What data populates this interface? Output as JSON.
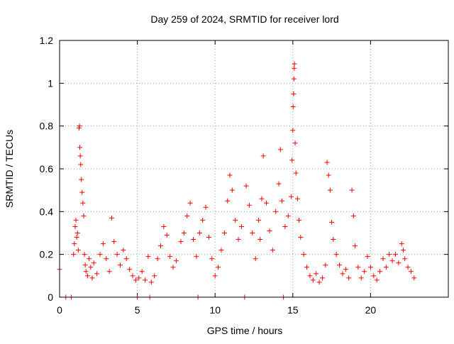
{
  "chart_data": {
    "type": "scatter",
    "title": "Day 259 of 2024, SRMTID for receiver lord",
    "xlabel": "GPS time / hours",
    "ylabel": "SRMTID / TECUs",
    "xlim": [
      0,
      25
    ],
    "ylim": [
      0,
      1.2
    ],
    "xticks": [
      0,
      5,
      10,
      15,
      20
    ],
    "xtick_labels": [
      "0",
      "5",
      "10",
      "15",
      "20"
    ],
    "yticks": [
      0,
      0.2,
      0.4,
      0.6,
      0.8,
      1,
      1.2
    ],
    "ytick_labels": [
      "0",
      "0.2",
      "0.4",
      "0.6",
      "0.8",
      "1",
      "1.2"
    ],
    "grid": true,
    "marker": "+",
    "color": "#ff0000",
    "series": [
      {
        "name": "SRMTID",
        "points": [
          [
            0.0,
            0.13
          ],
          [
            0.4,
            0.0
          ],
          [
            0.75,
            0.0
          ],
          [
            0.9,
            0.2
          ],
          [
            0.95,
            0.25
          ],
          [
            1.0,
            0.33
          ],
          [
            1.05,
            0.36
          ],
          [
            1.1,
            0.28
          ],
          [
            1.15,
            0.3
          ],
          [
            1.2,
            0.22
          ],
          [
            1.25,
            0.79
          ],
          [
            1.28,
            0.8
          ],
          [
            1.3,
            0.7
          ],
          [
            1.33,
            0.66
          ],
          [
            1.36,
            0.62
          ],
          [
            1.4,
            0.55
          ],
          [
            1.45,
            0.49
          ],
          [
            1.5,
            0.44
          ],
          [
            1.55,
            0.38
          ],
          [
            1.6,
            0.2
          ],
          [
            1.65,
            0.15
          ],
          [
            1.7,
            0.12
          ],
          [
            1.8,
            0.1
          ],
          [
            1.9,
            0.18
          ],
          [
            2.0,
            0.14
          ],
          [
            2.1,
            0.09
          ],
          [
            2.2,
            0.16
          ],
          [
            2.4,
            0.11
          ],
          [
            2.6,
            0.2
          ],
          [
            2.8,
            0.25
          ],
          [
            3.0,
            0.18
          ],
          [
            3.2,
            0.12
          ],
          [
            3.35,
            0.37
          ],
          [
            3.5,
            0.26
          ],
          [
            3.7,
            0.2
          ],
          [
            3.9,
            0.15
          ],
          [
            4.1,
            0.22
          ],
          [
            4.3,
            0.18
          ],
          [
            4.5,
            0.13
          ],
          [
            4.7,
            0.1
          ],
          [
            4.9,
            0.08
          ],
          [
            5.0,
            0.0
          ],
          [
            5.1,
            0.09
          ],
          [
            5.3,
            0.12
          ],
          [
            5.5,
            0.08
          ],
          [
            5.7,
            0.19
          ],
          [
            5.8,
            0.0
          ],
          [
            5.9,
            0.07
          ],
          [
            6.1,
            0.1
          ],
          [
            6.3,
            0.18
          ],
          [
            6.5,
            0.24
          ],
          [
            6.7,
            0.33
          ],
          [
            6.9,
            0.29
          ],
          [
            7.1,
            0.19
          ],
          [
            7.3,
            0.14
          ],
          [
            7.5,
            0.17
          ],
          [
            7.8,
            0.26
          ],
          [
            8.0,
            0.3
          ],
          [
            8.2,
            0.38
          ],
          [
            8.4,
            0.44
          ],
          [
            8.6,
            0.27
          ],
          [
            8.8,
            0.19
          ],
          [
            8.9,
            0.0
          ],
          [
            9.0,
            0.3
          ],
          [
            9.2,
            0.36
          ],
          [
            9.4,
            0.42
          ],
          [
            9.6,
            0.28
          ],
          [
            9.8,
            0.18
          ],
          [
            10.0,
            0.1
          ],
          [
            10.2,
            0.14
          ],
          [
            10.4,
            0.22
          ],
          [
            10.6,
            0.3
          ],
          [
            10.8,
            0.45
          ],
          [
            10.95,
            0.57
          ],
          [
            11.1,
            0.5
          ],
          [
            11.3,
            0.36
          ],
          [
            11.5,
            0.27
          ],
          [
            11.7,
            0.33
          ],
          [
            11.9,
            0.0
          ],
          [
            12.0,
            0.52
          ],
          [
            12.2,
            0.43
          ],
          [
            12.4,
            0.3
          ],
          [
            12.6,
            0.18
          ],
          [
            12.8,
            0.36
          ],
          [
            12.9,
            0.27
          ],
          [
            13.0,
            0.46
          ],
          [
            13.1,
            0.66
          ],
          [
            13.3,
            0.44
          ],
          [
            13.5,
            0.31
          ],
          [
            13.7,
            0.22
          ],
          [
            13.9,
            0.4
          ],
          [
            14.1,
            0.53
          ],
          [
            14.2,
            0.69
          ],
          [
            14.3,
            0.45
          ],
          [
            14.4,
            0.0
          ],
          [
            14.5,
            0.33
          ],
          [
            14.7,
            0.38
          ],
          [
            14.9,
            0.47
          ],
          [
            14.95,
            0.64
          ],
          [
            15.0,
            0.78
          ],
          [
            15.02,
            0.89
          ],
          [
            15.05,
            0.95
          ],
          [
            15.07,
            1.02
          ],
          [
            15.09,
            1.07
          ],
          [
            15.1,
            1.09
          ],
          [
            15.15,
            0.72
          ],
          [
            15.2,
            0.58
          ],
          [
            15.3,
            0.46
          ],
          [
            15.4,
            0.36
          ],
          [
            15.5,
            0.28
          ],
          [
            15.7,
            0.2
          ],
          [
            15.9,
            0.14
          ],
          [
            16.1,
            0.1
          ],
          [
            16.3,
            0.08
          ],
          [
            16.5,
            0.11
          ],
          [
            16.7,
            0.07
          ],
          [
            16.9,
            0.09
          ],
          [
            17.1,
            0.15
          ],
          [
            17.2,
            0.63
          ],
          [
            17.3,
            0.57
          ],
          [
            17.4,
            0.5
          ],
          [
            17.5,
            0.35
          ],
          [
            17.6,
            0.27
          ],
          [
            17.8,
            0.2
          ],
          [
            18.0,
            0.15
          ],
          [
            18.2,
            0.11
          ],
          [
            18.4,
            0.13
          ],
          [
            18.6,
            0.09
          ],
          [
            18.8,
            0.5
          ],
          [
            18.9,
            0.38
          ],
          [
            19.0,
            0.24
          ],
          [
            19.2,
            0.14
          ],
          [
            19.4,
            0.09
          ],
          [
            19.6,
            0.12
          ],
          [
            19.8,
            0.19
          ],
          [
            20.0,
            0.14
          ],
          [
            20.2,
            0.1
          ],
          [
            20.4,
            0.08
          ],
          [
            20.6,
            0.12
          ],
          [
            20.8,
            0.18
          ],
          [
            21.0,
            0.14
          ],
          [
            21.2,
            0.2
          ],
          [
            21.4,
            0.17
          ],
          [
            21.6,
            0.2
          ],
          [
            21.8,
            0.16
          ],
          [
            22.0,
            0.25
          ],
          [
            22.1,
            0.22
          ],
          [
            22.2,
            0.18
          ],
          [
            22.4,
            0.14
          ],
          [
            22.6,
            0.12
          ],
          [
            22.8,
            0.09
          ]
        ]
      }
    ]
  }
}
